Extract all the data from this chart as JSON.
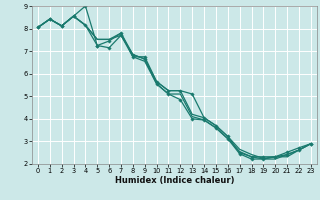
{
  "xlabel": "Humidex (Indice chaleur)",
  "bg_color": "#cce8e8",
  "grid_color": "#ffffff",
  "line_color": "#1a7a6e",
  "xlim": [
    -0.5,
    23.5
  ],
  "ylim": [
    2,
    9
  ],
  "xticks": [
    0,
    1,
    2,
    3,
    4,
    5,
    6,
    7,
    8,
    9,
    10,
    11,
    12,
    13,
    14,
    15,
    16,
    17,
    18,
    19,
    20,
    21,
    22,
    23
  ],
  "yticks": [
    2,
    3,
    4,
    5,
    6,
    7,
    8,
    9
  ],
  "lines": [
    {
      "x": [
        0,
        1,
        2,
        3,
        4,
        5,
        6,
        7,
        8,
        9,
        10,
        11,
        12,
        13,
        14,
        15,
        16,
        17,
        18,
        19,
        20,
        21,
        22,
        23
      ],
      "y": [
        8.05,
        8.42,
        8.12,
        8.55,
        9.0,
        7.25,
        7.15,
        7.7,
        6.85,
        6.65,
        5.55,
        5.1,
        4.85,
        4.0,
        3.95,
        3.6,
        3.12,
        2.45,
        2.22,
        2.22,
        2.32,
        2.42,
        2.62,
        2.9
      ],
      "markers": true,
      "lw": 0.9
    },
    {
      "x": [
        0,
        1,
        2,
        3,
        4,
        5,
        6,
        7,
        8,
        9,
        10,
        11,
        12,
        13,
        14,
        15,
        16,
        17,
        18,
        19,
        20,
        21,
        22,
        23
      ],
      "y": [
        8.05,
        8.42,
        8.12,
        8.55,
        8.15,
        7.25,
        7.45,
        7.8,
        6.75,
        6.75,
        5.65,
        5.25,
        5.25,
        5.1,
        4.05,
        3.7,
        3.22,
        2.5,
        2.32,
        2.32,
        2.32,
        2.52,
        2.72,
        2.9
      ],
      "markers": true,
      "lw": 0.9
    },
    {
      "x": [
        0,
        1,
        2,
        3,
        4,
        5,
        6,
        7,
        8,
        9,
        10,
        11,
        12,
        13,
        14,
        15,
        16,
        17,
        18,
        19,
        20,
        21,
        22,
        23
      ],
      "y": [
        8.05,
        8.42,
        8.12,
        8.55,
        8.15,
        7.52,
        7.52,
        7.8,
        6.85,
        6.65,
        5.65,
        5.25,
        5.25,
        4.2,
        4.05,
        3.7,
        3.22,
        2.65,
        2.42,
        2.25,
        2.32,
        2.32,
        2.62,
        2.9
      ],
      "markers": false,
      "lw": 0.9
    },
    {
      "x": [
        0,
        1,
        2,
        3,
        4,
        5,
        6,
        7,
        8,
        9,
        10,
        11,
        12,
        13,
        14,
        15,
        16,
        17,
        18,
        19,
        20,
        21,
        22,
        23
      ],
      "y": [
        8.05,
        8.42,
        8.12,
        8.55,
        8.15,
        7.52,
        7.52,
        7.7,
        6.75,
        6.55,
        5.55,
        5.1,
        5.1,
        4.1,
        3.95,
        3.6,
        3.12,
        2.55,
        2.32,
        2.22,
        2.22,
        2.42,
        2.62,
        2.9
      ],
      "markers": false,
      "lw": 0.9
    }
  ]
}
